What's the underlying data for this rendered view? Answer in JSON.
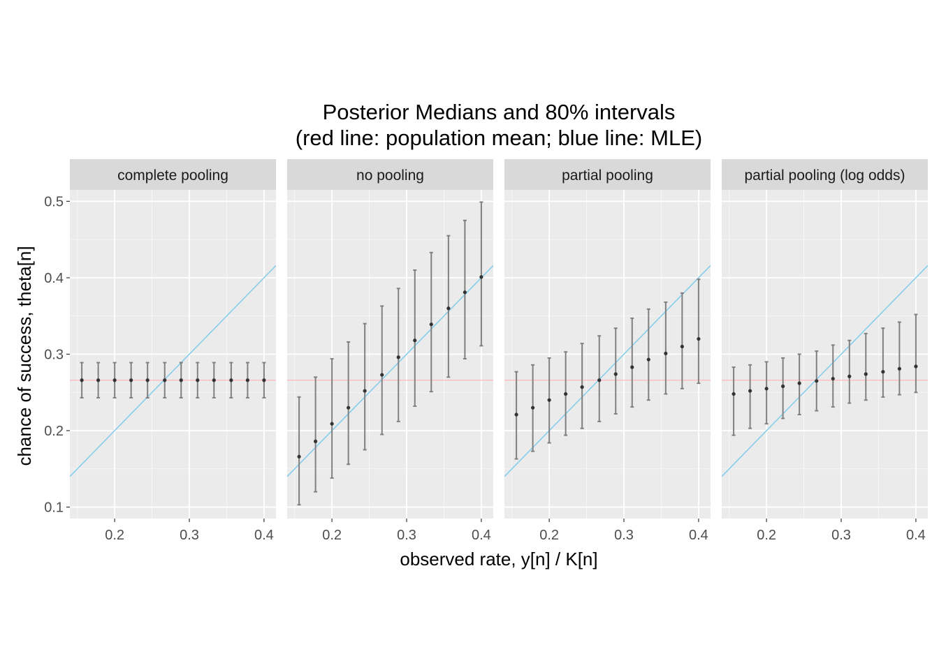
{
  "chart_data": {
    "type": "scatter",
    "title": "Posterior Medians and 80% intervals",
    "subtitle": "(red line: population mean;  blue line: MLE)",
    "xlabel": "observed rate, y[n] / K[n]",
    "ylabel": "chance of success, theta[n]",
    "xlim": [
      0.14,
      0.416
    ],
    "ylim": [
      0.085,
      0.515
    ],
    "x_ticks": [
      "0.2",
      "0.3",
      "0.4"
    ],
    "y_ticks": [
      "0.1",
      "0.2",
      "0.3",
      "0.4",
      "0.5"
    ],
    "grid": true,
    "legend": "none",
    "x": [
      0.156,
      0.178,
      0.2,
      0.222,
      0.244,
      0.267,
      0.289,
      0.311,
      0.333,
      0.356,
      0.378,
      0.4
    ],
    "population_mean": 0.266,
    "colors": {
      "panel_background": "#ebebeb",
      "strip_background": "#d9d9d9",
      "grid": "#ffffff",
      "population_mean_line": "#ffb6c1",
      "mle_line": "#87ceeb",
      "interval": "#808080",
      "median_point": "#333333"
    },
    "panels": [
      {
        "label": "complete pooling",
        "median": [
          0.266,
          0.266,
          0.266,
          0.266,
          0.266,
          0.266,
          0.266,
          0.266,
          0.266,
          0.266,
          0.266,
          0.266
        ],
        "lower": [
          0.243,
          0.243,
          0.243,
          0.243,
          0.243,
          0.243,
          0.243,
          0.243,
          0.243,
          0.243,
          0.243,
          0.243
        ],
        "upper": [
          0.289,
          0.289,
          0.289,
          0.289,
          0.289,
          0.289,
          0.289,
          0.289,
          0.289,
          0.289,
          0.289,
          0.289
        ]
      },
      {
        "label": "no pooling",
        "median": [
          0.166,
          0.186,
          0.209,
          0.23,
          0.252,
          0.273,
          0.296,
          0.318,
          0.339,
          0.36,
          0.381,
          0.401
        ],
        "lower": [
          0.103,
          0.12,
          0.138,
          0.156,
          0.175,
          0.195,
          0.212,
          0.232,
          0.251,
          0.27,
          0.294,
          0.311
        ],
        "upper": [
          0.244,
          0.27,
          0.294,
          0.316,
          0.34,
          0.363,
          0.386,
          0.41,
          0.433,
          0.455,
          0.475,
          0.499
        ]
      },
      {
        "label": "partial pooling",
        "median": [
          0.221,
          0.23,
          0.24,
          0.248,
          0.257,
          0.266,
          0.274,
          0.283,
          0.293,
          0.301,
          0.31,
          0.32
        ],
        "lower": [
          0.163,
          0.173,
          0.184,
          0.194,
          0.203,
          0.212,
          0.222,
          0.231,
          0.24,
          0.248,
          0.255,
          0.262
        ],
        "upper": [
          0.277,
          0.286,
          0.295,
          0.303,
          0.314,
          0.324,
          0.334,
          0.347,
          0.359,
          0.368,
          0.38,
          0.398
        ]
      },
      {
        "label": "partial pooling (log odds)",
        "median": [
          0.248,
          0.252,
          0.255,
          0.258,
          0.262,
          0.265,
          0.268,
          0.271,
          0.274,
          0.277,
          0.281,
          0.284
        ],
        "lower": [
          0.194,
          0.203,
          0.209,
          0.216,
          0.221,
          0.226,
          0.231,
          0.236,
          0.24,
          0.244,
          0.247,
          0.25
        ],
        "upper": [
          0.283,
          0.286,
          0.29,
          0.295,
          0.3,
          0.304,
          0.312,
          0.318,
          0.327,
          0.334,
          0.342,
          0.352
        ]
      }
    ]
  }
}
